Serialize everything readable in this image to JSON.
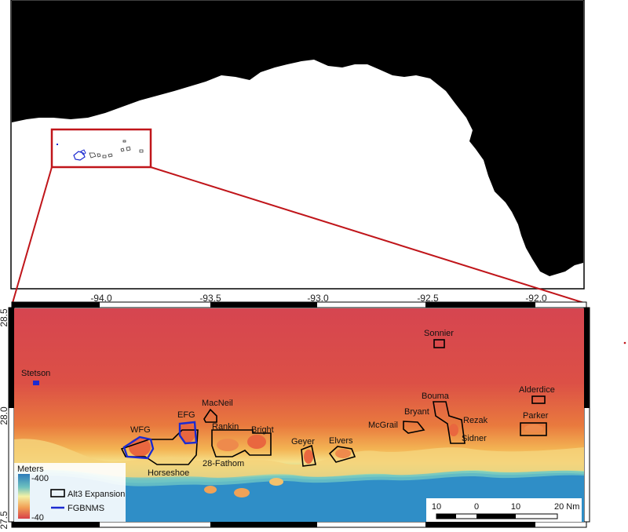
{
  "overview_map": {
    "inset_box_color": "#c0151a"
  },
  "detail_map": {
    "x_ticks": [
      "-94.0",
      "-93.5",
      "-93.0",
      "-92.5",
      "-92.0"
    ],
    "y_ticks": [
      "28.5",
      "28.0",
      "27.5"
    ],
    "sites": {
      "stetson": "Stetson",
      "wfg": "WFG",
      "efg": "EFG",
      "horseshoe": "Horseshoe",
      "macneil": "MacNeil",
      "rankin": "Rankin",
      "bright": "Bright",
      "fathom28": "28-Fathom",
      "geyer": "Geyer",
      "elvers": "Elvers",
      "mcgrail": "McGrail",
      "bryant": "Bryant",
      "bouma": "Bouma",
      "rezak": "Rezak",
      "sidner": "Sidner",
      "sonnier": "Sonnier",
      "alderdice": "Alderdice",
      "parker": "Parker"
    },
    "legend": {
      "title": "Meters",
      "depth_max": "-400",
      "depth_min": "-40",
      "expansion_label": "Alt3 Expansion",
      "expansion_color": "#000000",
      "fgbnms_label": "FGBNMS",
      "fgbnms_color": "#1c2bd1"
    },
    "scale_bar": {
      "labels": [
        "10",
        "0",
        "10",
        "20 Nm"
      ]
    },
    "colors": {
      "deep": "#1f78c0",
      "shallow": "#d7404a"
    }
  }
}
